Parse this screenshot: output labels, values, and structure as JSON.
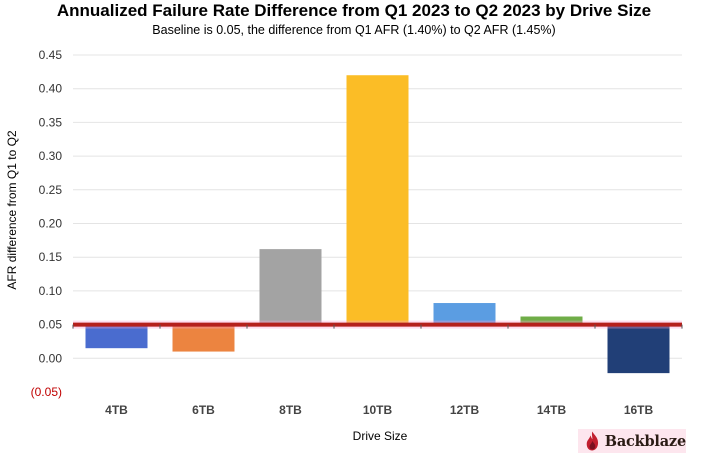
{
  "chart_data": {
    "type": "bar",
    "title": "Annualized Failure Rate Difference from Q1 2023 to Q2 2023 by Drive Size",
    "subtitle": "Baseline is 0.05, the difference from Q1 AFR (1.40%) to Q2 AFR (1.45%)",
    "xlabel": "Drive Size",
    "ylabel": "AFR difference from Q1 to Q2",
    "categories": [
      "4TB",
      "6TB",
      "8TB",
      "10TB",
      "12TB",
      "14TB",
      "16TB"
    ],
    "values": [
      0.015,
      0.01,
      0.162,
      0.42,
      0.082,
      0.062,
      -0.022
    ],
    "baseline": 0.05,
    "ylim": [
      -0.05,
      0.45
    ],
    "yticks": [
      -0.05,
      0.0,
      0.05,
      0.1,
      0.15,
      0.2,
      0.25,
      0.3,
      0.35,
      0.4,
      0.45
    ],
    "ytick_labels": [
      "(0.05)",
      "0.00",
      "0.05",
      "0.10",
      "0.15",
      "0.20",
      "0.25",
      "0.30",
      "0.35",
      "0.40",
      "0.45"
    ],
    "grid": true,
    "legend": "none",
    "colors": {
      "bars": [
        "#4a6ccf",
        "#ec8440",
        "#a3a3a3",
        "#fbbd26",
        "#5b9de2",
        "#6fad47",
        "#213f77"
      ],
      "baseline": "#b5201c",
      "negative_tick": "#c00000"
    }
  },
  "logo": {
    "text": "Backblaze",
    "icon": "flame-icon"
  }
}
